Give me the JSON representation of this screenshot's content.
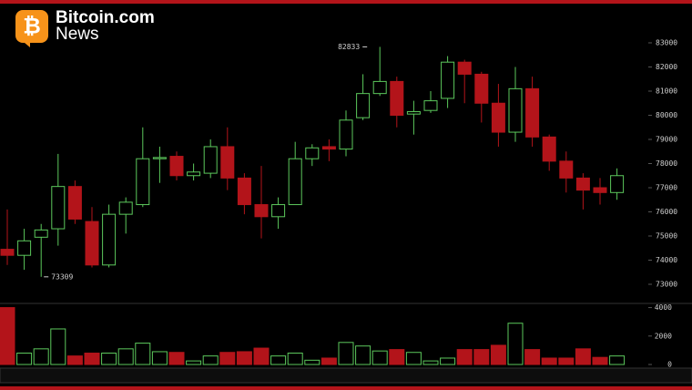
{
  "logo": {
    "brand": "Bitcoin.com",
    "sub": "News"
  },
  "chart_data": {
    "type": "candlestick",
    "up_color": "#5cc85c",
    "down_color": "#b3141a",
    "open": [
      74450,
      74200,
      74950,
      75300,
      77050,
      75600,
      73800,
      75900,
      76300,
      78200,
      78300,
      77500,
      77600,
      78700,
      77400,
      76300,
      75800,
      76300,
      78200,
      78700,
      78600,
      79900,
      80900,
      81400,
      80050,
      80200,
      80700,
      82200,
      81700,
      80500,
      79300,
      81100,
      79100,
      78100,
      77400,
      77000,
      76800
    ],
    "high": [
      76100,
      75300,
      75500,
      78400,
      77300,
      76200,
      76300,
      76600,
      79500,
      78700,
      78500,
      78000,
      79000,
      79500,
      77600,
      77900,
      76600,
      78900,
      78800,
      79000,
      80200,
      81700,
      82833,
      81600,
      80600,
      81000,
      82450,
      82300,
      81800,
      81300,
      82000,
      81600,
      79200,
      78500,
      77600,
      77400,
      77800
    ],
    "low": [
      73800,
      73600,
      73309,
      74600,
      75500,
      73700,
      73700,
      75100,
      76200,
      77200,
      77300,
      77300,
      77400,
      76900,
      75900,
      74900,
      75300,
      76300,
      77900,
      78100,
      78300,
      79800,
      80800,
      79500,
      79200,
      80100,
      80300,
      80500,
      79700,
      78700,
      78900,
      78700,
      77700,
      76800,
      76100,
      76300,
      76500
    ],
    "close": [
      74200,
      74800,
      75250,
      77050,
      75700,
      73800,
      75900,
      76400,
      78200,
      78250,
      77500,
      77650,
      78700,
      77400,
      76300,
      75800,
      76300,
      78200,
      78650,
      78600,
      79800,
      80900,
      81400,
      80000,
      80150,
      80600,
      82200,
      81700,
      80500,
      79300,
      81100,
      79100,
      78100,
      77400,
      76900,
      76800,
      77500
    ],
    "volume": [
      4000,
      800,
      1100,
      2500,
      600,
      800,
      800,
      1100,
      1500,
      900,
      850,
      250,
      600,
      850,
      900,
      1150,
      600,
      800,
      300,
      450,
      1550,
      1300,
      950,
      1050,
      850,
      250,
      450,
      1050,
      1050,
      1350,
      2900,
      1050,
      450,
      450,
      1100,
      500,
      600
    ],
    "ylim": [
      72500,
      83300
    ],
    "yticks": [
      73000,
      74000,
      75000,
      76000,
      77000,
      78000,
      79000,
      80000,
      81000,
      82000,
      83000
    ],
    "vlim": [
      0,
      4100
    ],
    "vticks": [
      0,
      2000,
      4000
    ],
    "annotations": [
      {
        "value": 82833
      },
      {
        "value": 73309
      }
    ]
  }
}
